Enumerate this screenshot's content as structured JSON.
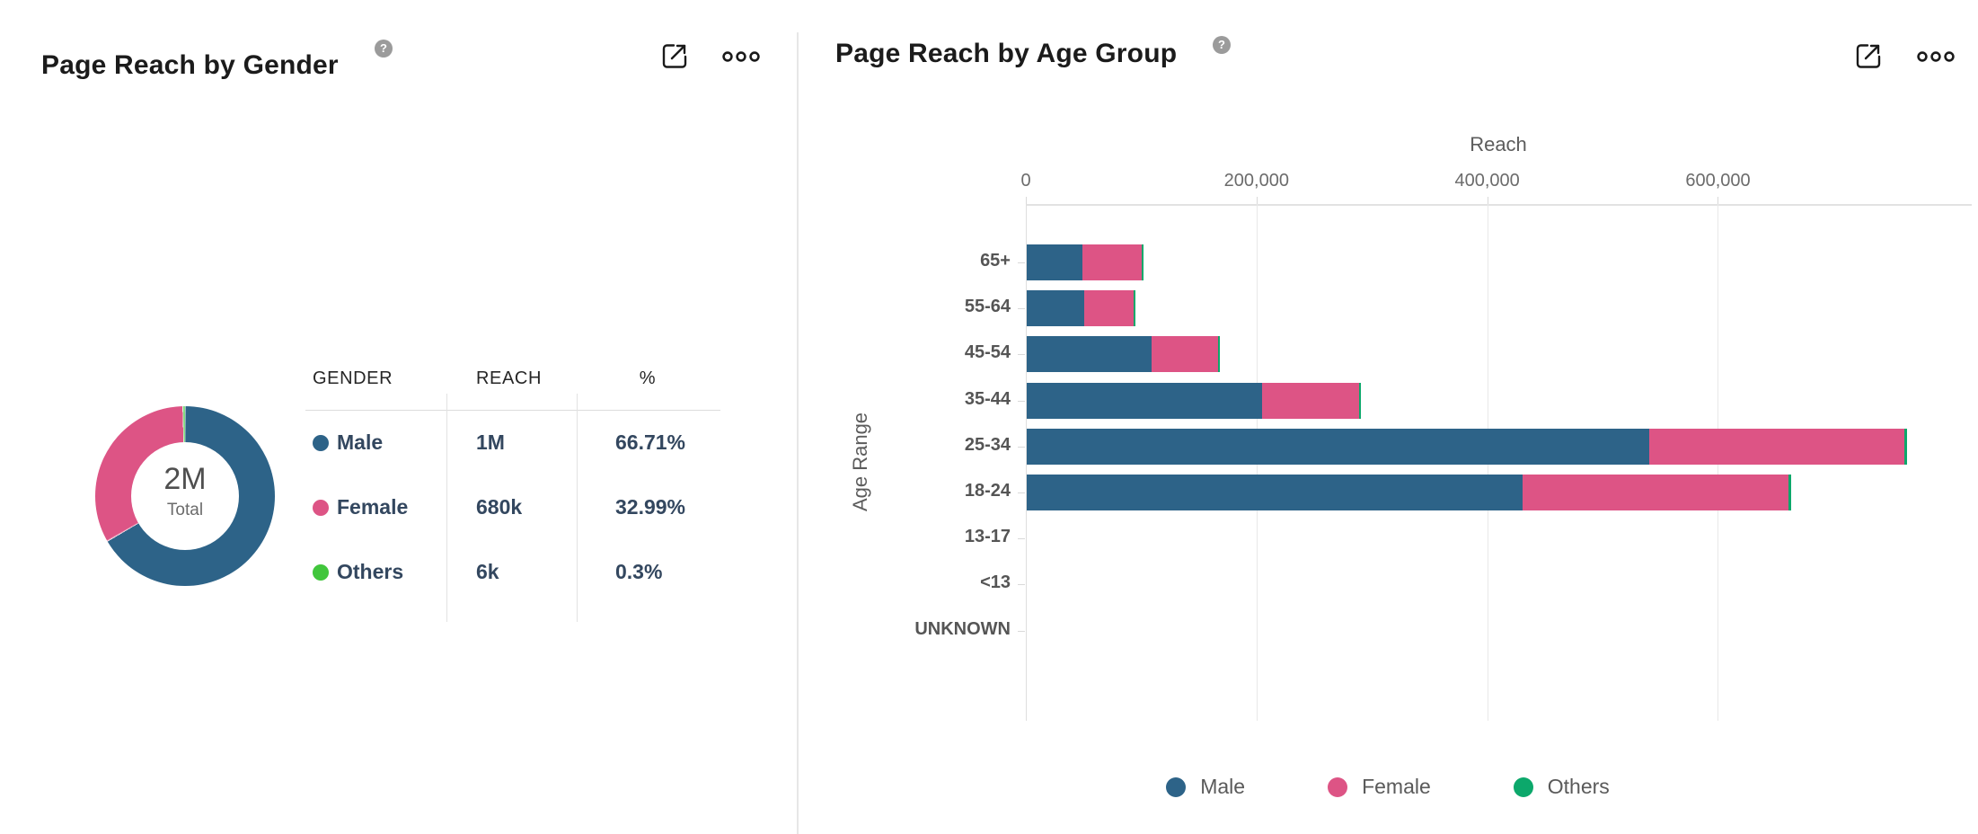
{
  "panels": {
    "gender": {
      "title": "Page Reach by Gender",
      "help_glyph": "?",
      "actions": {
        "export_icon": "external-link-icon",
        "menu_icon": "ellipsis-menu-icon"
      },
      "donut_center": {
        "value": "2M",
        "label": "Total"
      },
      "table": {
        "headers": {
          "gender": "GENDER",
          "reach": "REACH",
          "pct": "%"
        },
        "rows": [
          {
            "label": "Male",
            "color": "#2d6388",
            "reach": "1M",
            "pct": "66.71%"
          },
          {
            "label": "Female",
            "color": "#dd5485",
            "reach": "680k",
            "pct": "32.99%"
          },
          {
            "label": "Others",
            "color": "#41c63c",
            "reach": "6k",
            "pct": "0.3%"
          }
        ]
      }
    },
    "age": {
      "title": "Page Reach by Age Group",
      "help_glyph": "?",
      "actions": {
        "export_icon": "external-link-icon",
        "menu_icon": "ellipsis-menu-icon"
      }
    }
  },
  "chart_data": [
    {
      "type": "pie",
      "donut": true,
      "title": "Page Reach by Gender",
      "labels": [
        "Male",
        "Female",
        "Others"
      ],
      "values_pct": [
        66.71,
        32.99,
        0.3
      ],
      "values_reach": [
        "1M",
        "680k",
        "6k"
      ],
      "colors": [
        "#2d6388",
        "#dd5485",
        "#41c63c"
      ],
      "center_value": "2M",
      "center_label": "Total"
    },
    {
      "type": "bar",
      "orientation": "horizontal",
      "stacked": true,
      "title": "Page Reach by Age Group",
      "xlabel": "Reach",
      "ylabel": "Age Range",
      "categories": [
        "65+",
        "55-64",
        "45-54",
        "35-44",
        "25-34",
        "18-24",
        "13-17",
        "<13",
        "UNKNOWN"
      ],
      "series": [
        {
          "name": "Male",
          "color": "#2d6388",
          "values": [
            48000,
            50000,
            108000,
            204000,
            540000,
            430000,
            0,
            0,
            0
          ]
        },
        {
          "name": "Female",
          "color": "#dd5485",
          "values": [
            52000,
            43000,
            58000,
            84000,
            221000,
            230000,
            0,
            0,
            0
          ]
        },
        {
          "name": "Others",
          "color": "#0ca86b",
          "values": [
            1500,
            1000,
            1500,
            2000,
            2500,
            2500,
            0,
            0,
            0
          ]
        }
      ],
      "xticks": [
        0,
        200000,
        400000,
        600000
      ],
      "xtick_labels": [
        "0",
        "200,000",
        "400,000",
        "600,000"
      ],
      "xlim": [
        0,
        820000
      ],
      "grid": true,
      "legend": [
        "Male",
        "Female",
        "Others"
      ],
      "legend_position": "bottom",
      "legend_colors": [
        "#2d6388",
        "#dd5485",
        "#0ca86b"
      ]
    }
  ]
}
